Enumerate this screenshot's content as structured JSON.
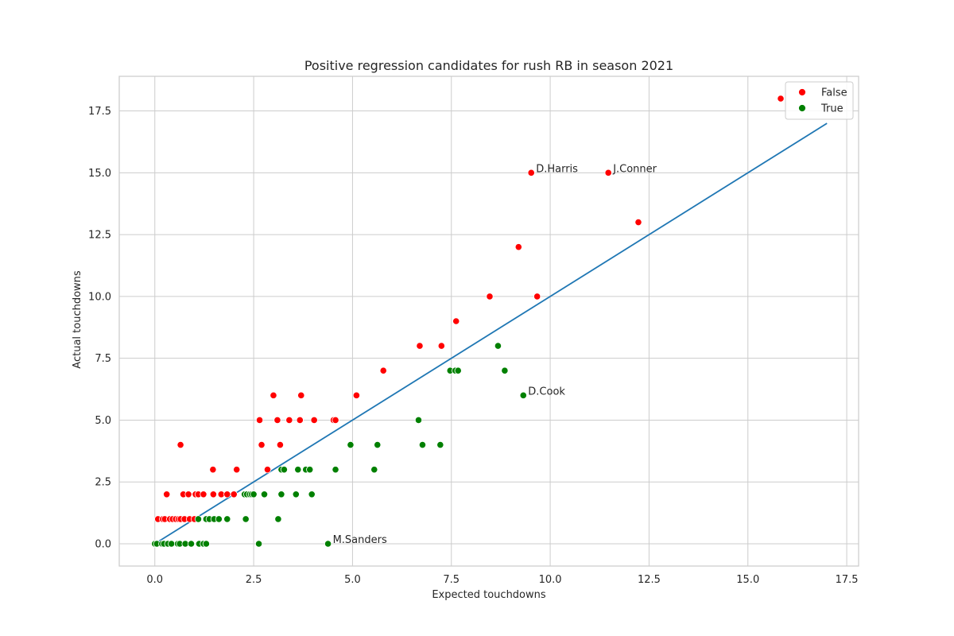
{
  "chart_data": {
    "type": "scatter",
    "title": "Positive regression candidates for rush RB in season 2021",
    "xlabel": "Expected touchdowns",
    "ylabel": "Actual touchdowns",
    "xlim": [
      -0.9,
      17.8
    ],
    "ylim": [
      -0.9,
      18.9
    ],
    "xticks": [
      0.0,
      2.5,
      5.0,
      7.5,
      10.0,
      12.5,
      15.0,
      17.5
    ],
    "xtick_labels": [
      "0.0",
      "2.5",
      "5.0",
      "7.5",
      "10.0",
      "12.5",
      "15.0",
      "17.5"
    ],
    "yticks": [
      0.0,
      2.5,
      5.0,
      7.5,
      10.0,
      12.5,
      15.0,
      17.5
    ],
    "ytick_labels": [
      "0.0",
      "2.5",
      "5.0",
      "7.5",
      "10.0",
      "12.5",
      "15.0",
      "17.5"
    ],
    "grid": true,
    "legend_position": "top-right",
    "reference_line": {
      "x": [
        0,
        17
      ],
      "y": [
        0,
        17
      ],
      "color": "#1f77b4"
    },
    "series": [
      {
        "name": "False",
        "color": "#ff0000",
        "points": [
          [
            15.83,
            18
          ],
          [
            11.47,
            15
          ],
          [
            9.52,
            15
          ],
          [
            12.23,
            13
          ],
          [
            9.2,
            12
          ],
          [
            8.47,
            10
          ],
          [
            9.67,
            10
          ],
          [
            7.62,
            9
          ],
          [
            6.7,
            8
          ],
          [
            7.25,
            8
          ],
          [
            5.78,
            7
          ],
          [
            3.0,
            6
          ],
          [
            3.7,
            6
          ],
          [
            5.1,
            6
          ],
          [
            2.65,
            5
          ],
          [
            3.1,
            5
          ],
          [
            3.4,
            5
          ],
          [
            3.67,
            5
          ],
          [
            4.03,
            5
          ],
          [
            4.52,
            5
          ],
          [
            4.57,
            5
          ],
          [
            0.65,
            4
          ],
          [
            2.7,
            4
          ],
          [
            3.17,
            4
          ],
          [
            1.47,
            3
          ],
          [
            2.07,
            3
          ],
          [
            2.85,
            3
          ],
          [
            0.3,
            2
          ],
          [
            0.72,
            2
          ],
          [
            0.85,
            2
          ],
          [
            1.03,
            2
          ],
          [
            1.1,
            2
          ],
          [
            1.23,
            2
          ],
          [
            1.48,
            2
          ],
          [
            1.68,
            2
          ],
          [
            1.83,
            2
          ],
          [
            2.0,
            2
          ],
          [
            0.08,
            1
          ],
          [
            0.2,
            1
          ],
          [
            0.25,
            1
          ],
          [
            0.38,
            1
          ],
          [
            0.45,
            1
          ],
          [
            0.53,
            1
          ],
          [
            0.6,
            1
          ],
          [
            0.65,
            1
          ],
          [
            0.75,
            1
          ],
          [
            0.88,
            1
          ],
          [
            1.0,
            1
          ]
        ]
      },
      {
        "name": "True",
        "color": "#008000",
        "points": [
          [
            8.68,
            8
          ],
          [
            8.85,
            7
          ],
          [
            7.47,
            7
          ],
          [
            7.6,
            7
          ],
          [
            7.67,
            7
          ],
          [
            9.32,
            6
          ],
          [
            6.67,
            5
          ],
          [
            4.95,
            4
          ],
          [
            5.63,
            4
          ],
          [
            6.77,
            4
          ],
          [
            7.22,
            4
          ],
          [
            3.2,
            3
          ],
          [
            3.27,
            3
          ],
          [
            3.62,
            3
          ],
          [
            3.82,
            3
          ],
          [
            3.92,
            3
          ],
          [
            4.57,
            3
          ],
          [
            5.55,
            3
          ],
          [
            2.27,
            2
          ],
          [
            2.33,
            2
          ],
          [
            2.4,
            2
          ],
          [
            2.45,
            2
          ],
          [
            2.5,
            2
          ],
          [
            2.77,
            2
          ],
          [
            3.2,
            2
          ],
          [
            3.57,
            2
          ],
          [
            3.97,
            2
          ],
          [
            1.1,
            1
          ],
          [
            1.3,
            1
          ],
          [
            1.38,
            1
          ],
          [
            1.5,
            1
          ],
          [
            1.62,
            1
          ],
          [
            1.83,
            1
          ],
          [
            2.3,
            1
          ],
          [
            3.12,
            1
          ],
          [
            0.0,
            0
          ],
          [
            0.05,
            0
          ],
          [
            0.18,
            0
          ],
          [
            0.23,
            0
          ],
          [
            0.33,
            0
          ],
          [
            0.42,
            0
          ],
          [
            0.58,
            0
          ],
          [
            0.63,
            0
          ],
          [
            0.77,
            0
          ],
          [
            0.92,
            0
          ],
          [
            1.12,
            0
          ],
          [
            1.23,
            0
          ],
          [
            1.3,
            0
          ],
          [
            2.63,
            0
          ],
          [
            4.38,
            0
          ]
        ]
      }
    ],
    "annotations": [
      {
        "text": "D.Harris",
        "x": 9.52,
        "y": 15
      },
      {
        "text": "J.Conner",
        "x": 11.47,
        "y": 15
      },
      {
        "text": "D.Cook",
        "x": 9.32,
        "y": 6
      },
      {
        "text": "M.Sanders",
        "x": 4.38,
        "y": 0
      }
    ]
  }
}
